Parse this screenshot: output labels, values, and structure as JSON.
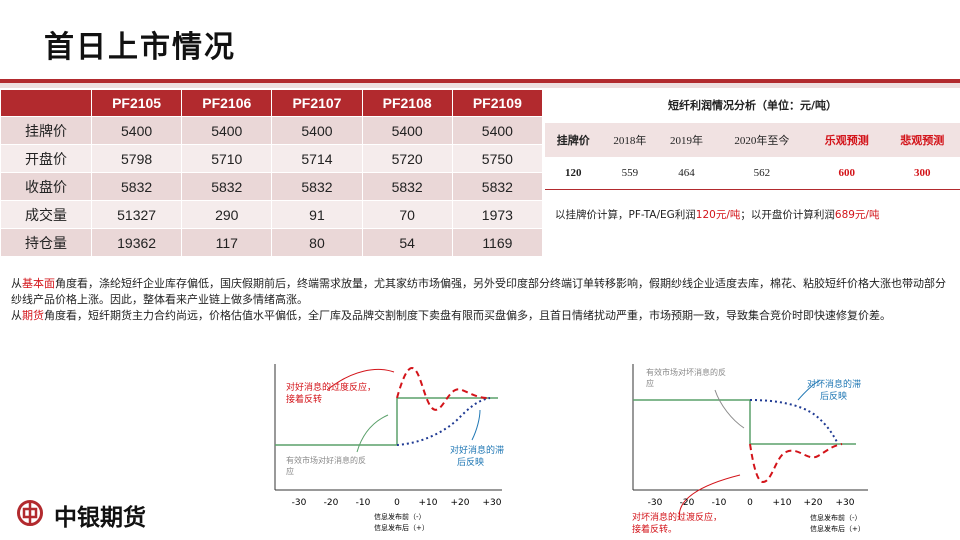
{
  "title": "首日上市情况",
  "main_table": {
    "headers": [
      "",
      "PF2105",
      "PF2106",
      "PF2107",
      "PF2108",
      "PF2109"
    ],
    "rows": [
      {
        "label": "挂牌价",
        "values": [
          "5400",
          "5400",
          "5400",
          "5400",
          "5400"
        ]
      },
      {
        "label": "开盘价",
        "values": [
          "5798",
          "5710",
          "5714",
          "5720",
          "5750"
        ]
      },
      {
        "label": "收盘价",
        "values": [
          "5832",
          "5832",
          "5832",
          "5832",
          "5832"
        ]
      },
      {
        "label": "成交量",
        "values": [
          "51327",
          "290",
          "91",
          "70",
          "1973"
        ]
      },
      {
        "label": "持仓量",
        "values": [
          "19362",
          "117",
          "80",
          "54",
          "1169"
        ]
      }
    ]
  },
  "profit": {
    "title": "短纤利润情况分析（单位：元/吨）",
    "headers": [
      "挂牌价",
      "2018年",
      "2019年",
      "2020年至今",
      "乐观预测",
      "悲观预测"
    ],
    "values": [
      "120",
      "559",
      "464",
      "562",
      "600",
      "300"
    ],
    "note_prefix": "以挂牌价计算，PF-TA/EG利润",
    "note_v1": "120元/吨",
    "note_mid": "；以开盘价计算利润",
    "note_v2": "689元/吨",
    "colors": {
      "accent": "#b22a2e",
      "highlight": "#d3141a"
    }
  },
  "paragraphs": {
    "p1_a": "从",
    "p1_hl": "基本面",
    "p1_b": "角度看，涤纶短纤企业库存偏低，国庆假期前后，终端需求放量，尤其家纺市场偏强，另外受印度部分终端订单转移影响，假期纱线企业适度去库，棉花、粘胶短纤价格大涨也带动部分纱线产品价格上涨。因此，整体看来产业链上做多情绪高涨。",
    "p2_a": "从",
    "p2_hl": "期货",
    "p2_b": "角度看，短纤期货主力合约尚远，价格估值水平偏低，全厂库及品牌交割制度下卖盘有限而买盘偏多，且首日情绪扰动严重，市场预期一致，导致集合竞价时即快速修复价差。"
  },
  "chart_left": {
    "ticks": [
      "-30",
      "-20",
      "-10",
      "0",
      "+10",
      "+20",
      "+30"
    ],
    "label_over_1": "对好消息的过度反应，",
    "label_over_2": "接着反转",
    "label_eff_1": "有效市场对好消息的反",
    "label_eff_2": "应",
    "label_lag_1": "对好消息的滞",
    "label_lag_2": "后反映",
    "xlabel_1": "信息发布前（-）",
    "xlabel_2": "信息发布后（+）"
  },
  "chart_right": {
    "ticks": [
      "-30",
      "-20",
      "-10",
      "0",
      "+10",
      "+20",
      "+30"
    ],
    "label_eff_1": "有效市场对坏消息的反",
    "label_eff_2": "应",
    "label_lag_1": "对坏消息的滞",
    "label_lag_2": "后反映",
    "label_over_1": "对坏消息的过渡反应，",
    "label_over_2": "接着反转。",
    "xlabel_1": "信息发布前（-）",
    "xlabel_2": "信息发布后（+）"
  },
  "logo": {
    "text": "中银期货",
    "icon": "bank-of-china-logo-icon"
  }
}
